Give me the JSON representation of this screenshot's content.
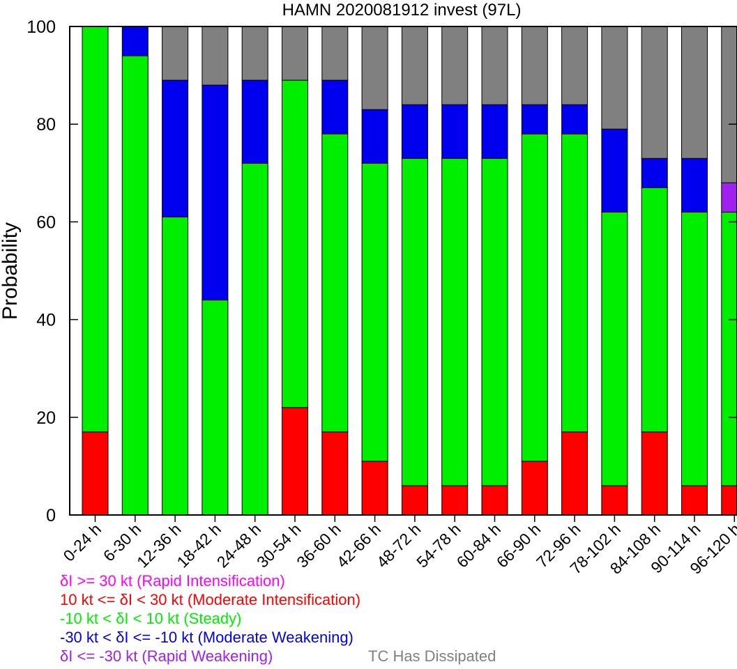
{
  "chart_data": {
    "type": "bar",
    "stacked": true,
    "title": "HAMN 2020081912 invest (97L)",
    "xlabel": "",
    "ylabel": "Probability",
    "ylim": [
      0,
      100
    ],
    "yticks": [
      0,
      20,
      40,
      60,
      80,
      100
    ],
    "grid": false,
    "categories": [
      "0-24 h",
      "6-30 h",
      "12-36 h",
      "18-42 h",
      "24-48 h",
      "30-54 h",
      "36-60 h",
      "42-66 h",
      "48-72 h",
      "54-78 h",
      "60-84 h",
      "66-90 h",
      "72-96 h",
      "78-102 h",
      "84-108 h",
      "90-114 h",
      "96-120 h"
    ],
    "series": [
      {
        "key": "mod_int",
        "color": "#ff0000",
        "values": [
          17,
          0,
          0,
          0,
          0,
          22,
          17,
          11,
          6,
          6,
          6,
          11,
          17,
          6,
          17,
          6,
          6
        ]
      },
      {
        "key": "steady",
        "color": "#00ee00",
        "values": [
          83,
          94,
          61,
          44,
          72,
          67,
          61,
          61,
          67,
          67,
          67,
          67,
          61,
          56,
          50,
          56,
          56
        ]
      },
      {
        "key": "mod_weak",
        "color": "#0000ee",
        "values": [
          0,
          6,
          28,
          44,
          17,
          0,
          11,
          11,
          11,
          11,
          11,
          6,
          6,
          17,
          6,
          11,
          0
        ]
      },
      {
        "key": "rapid_weak",
        "color": "#a020f0",
        "values": [
          0,
          0,
          0,
          0,
          0,
          0,
          0,
          0,
          0,
          0,
          0,
          0,
          0,
          0,
          0,
          0,
          6
        ]
      },
      {
        "key": "dissipated",
        "color": "#808080",
        "values": [
          0,
          0,
          11,
          12,
          11,
          11,
          11,
          17,
          16,
          16,
          16,
          16,
          16,
          21,
          27,
          27,
          32
        ]
      }
    ]
  },
  "legend": {
    "rapid_int": {
      "text": "δI >= 30 kt (Rapid Intensification)",
      "color": "#ff00ff"
    },
    "mod_int": {
      "text": "10 kt <= δI < 30 kt (Moderate Intensification)",
      "color": "#ff0000"
    },
    "steady": {
      "text": "-10 kt < δI < 10 kt (Steady)",
      "color": "#00ee00"
    },
    "mod_weak": {
      "text": "-30 kt < δI <= -10 kt (Moderate Weakening)",
      "color": "#0000ee"
    },
    "rapid_weak": {
      "text": "δI <= -30 kt (Rapid Weakening)",
      "color": "#a020f0"
    },
    "dissipated": {
      "text": "TC Has Dissipated",
      "color": "#808080"
    }
  }
}
